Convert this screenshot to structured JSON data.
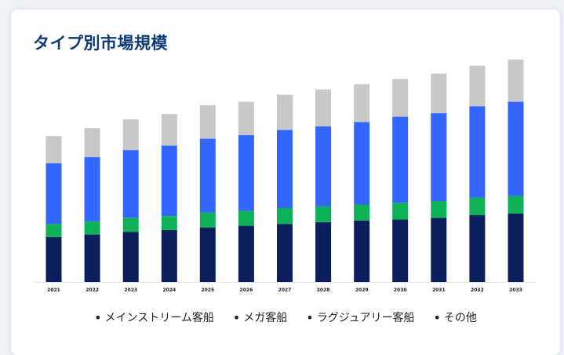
{
  "title": "タイプ別市場規模",
  "chart_data": {
    "type": "bar",
    "stacked": true,
    "categories": [
      "2021",
      "2022",
      "2023",
      "2024",
      "2025",
      "2026",
      "2027",
      "2028",
      "2029",
      "2030",
      "2031",
      "2032",
      "2033"
    ],
    "series": [
      {
        "name": "メインストリーム客船",
        "color": "#0b1f5e",
        "values": [
          51,
          54,
          57,
          59,
          62,
          64,
          66,
          68,
          70,
          71,
          73,
          76,
          78
        ]
      },
      {
        "name": "メガ客船",
        "color": "#0db257",
        "values": [
          15,
          15,
          16,
          16,
          17,
          17,
          18,
          18,
          18,
          19,
          19,
          20,
          20
        ]
      },
      {
        "name": "ラグジュアリー客船",
        "color": "#3366ff",
        "values": [
          69,
          73,
          77,
          80,
          84,
          86,
          89,
          91,
          94,
          98,
          100,
          104,
          107
        ]
      },
      {
        "name": "その他",
        "color": "#c8c8c8",
        "values": [
          31,
          33,
          35,
          36,
          38,
          38,
          40,
          42,
          43,
          43,
          45,
          46,
          48
        ]
      }
    ],
    "xlabel": "",
    "ylabel": "",
    "ylim": [
      0,
      260
    ],
    "grid": false,
    "legend_position": "bottom"
  }
}
